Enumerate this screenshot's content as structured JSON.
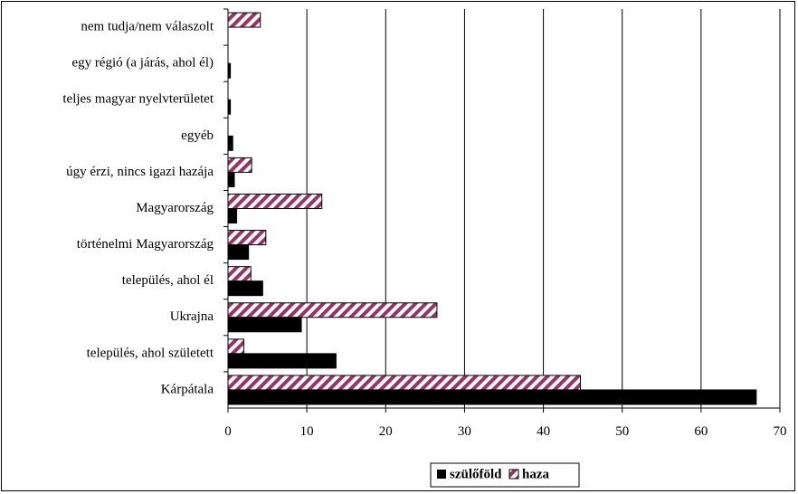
{
  "chart_data": {
    "type": "bar",
    "orientation": "horizontal",
    "categories": [
      "Kárpátala",
      "település, ahol született",
      "Ukrajna",
      "település, ahol él",
      "történelmi Magyarország",
      "Magyarország",
      "úgy érzi, nincs igazi hazája",
      "egyéb",
      "teljes magyar nyelvterületet",
      "egy régió (a járás, ahol él)",
      "nem tudja/nem válaszolt"
    ],
    "series": [
      {
        "name": "szülőföld",
        "color": "#000000",
        "pattern": "solid",
        "values": [
          67,
          13.7,
          9.3,
          4.4,
          2.6,
          1.1,
          0.8,
          0.6,
          0.3,
          0.3,
          0
        ]
      },
      {
        "name": "haza",
        "color": "#993366",
        "pattern": "diagonal-hatch",
        "values": [
          44.7,
          2,
          26.5,
          2.9,
          4.8,
          11.9,
          3,
          0,
          0,
          0,
          4.1
        ]
      }
    ],
    "xlim": [
      0,
      70
    ],
    "xticks": [
      0,
      10,
      20,
      30,
      40,
      50,
      60,
      70
    ],
    "grid": "vertical",
    "legend_position": "bottom"
  }
}
